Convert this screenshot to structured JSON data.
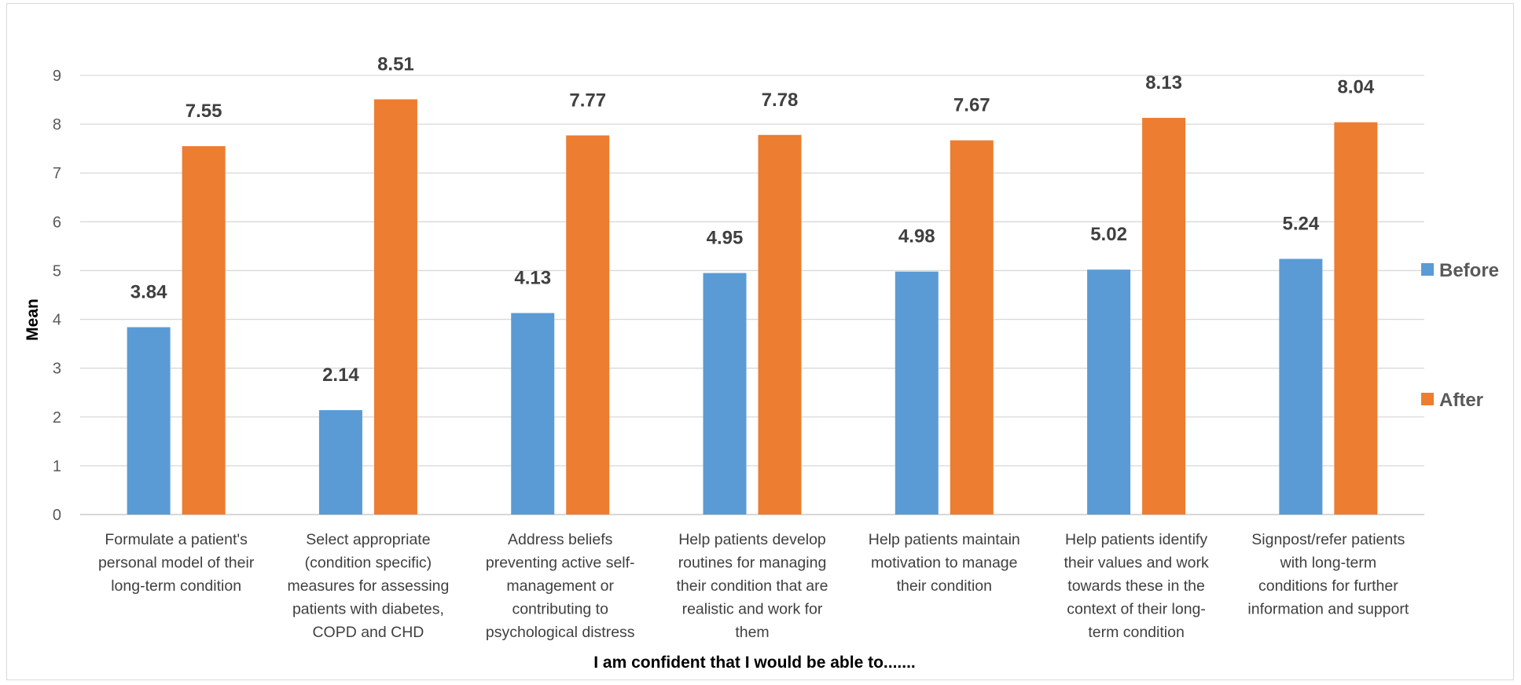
{
  "chart_data": {
    "type": "bar",
    "title": "",
    "xlabel": "I am confident that I would be able to.......",
    "ylabel": "Mean",
    "ylim": [
      0,
      9
    ],
    "yticks": [
      "0",
      "1",
      "2",
      "3",
      "4",
      "5",
      "6",
      "7",
      "8",
      "9"
    ],
    "grid": true,
    "legend_position": "right",
    "categories": [
      [
        "Formulate a patient's",
        "personal model of their",
        "long-term condition"
      ],
      [
        "Select appropriate",
        "(condition specific)",
        "measures for assessing",
        "patients with diabetes,",
        "COPD and CHD"
      ],
      [
        "Address beliefs",
        "preventing active self-",
        "management or",
        "contributing to",
        "psychological distress"
      ],
      [
        "Help patients develop",
        "routines for managing",
        "their condition that are",
        "realistic and work for",
        "them"
      ],
      [
        "Help patients maintain",
        "motivation to manage",
        "their condition"
      ],
      [
        "Help patients identify",
        "their values and work",
        "towards these in the",
        "context of their long-",
        "term condition"
      ],
      [
        "Signpost/refer patients",
        "with long-term",
        "conditions for further",
        "information and support"
      ]
    ],
    "series": [
      {
        "name": "Before",
        "color": "#5b9bd5",
        "values": [
          3.84,
          2.14,
          4.13,
          4.95,
          4.98,
          5.02,
          5.24
        ],
        "labels": [
          "3.84",
          "2.14",
          "4.13",
          "4.95",
          "4.98",
          "5.02",
          "5.24"
        ]
      },
      {
        "name": "After",
        "color": "#ed7d31",
        "values": [
          7.55,
          8.51,
          7.77,
          7.78,
          7.67,
          8.13,
          8.04
        ],
        "labels": [
          "7.55",
          "8.51",
          "7.77",
          "7.78",
          "7.67",
          "8.13",
          "8.04"
        ]
      }
    ]
  }
}
